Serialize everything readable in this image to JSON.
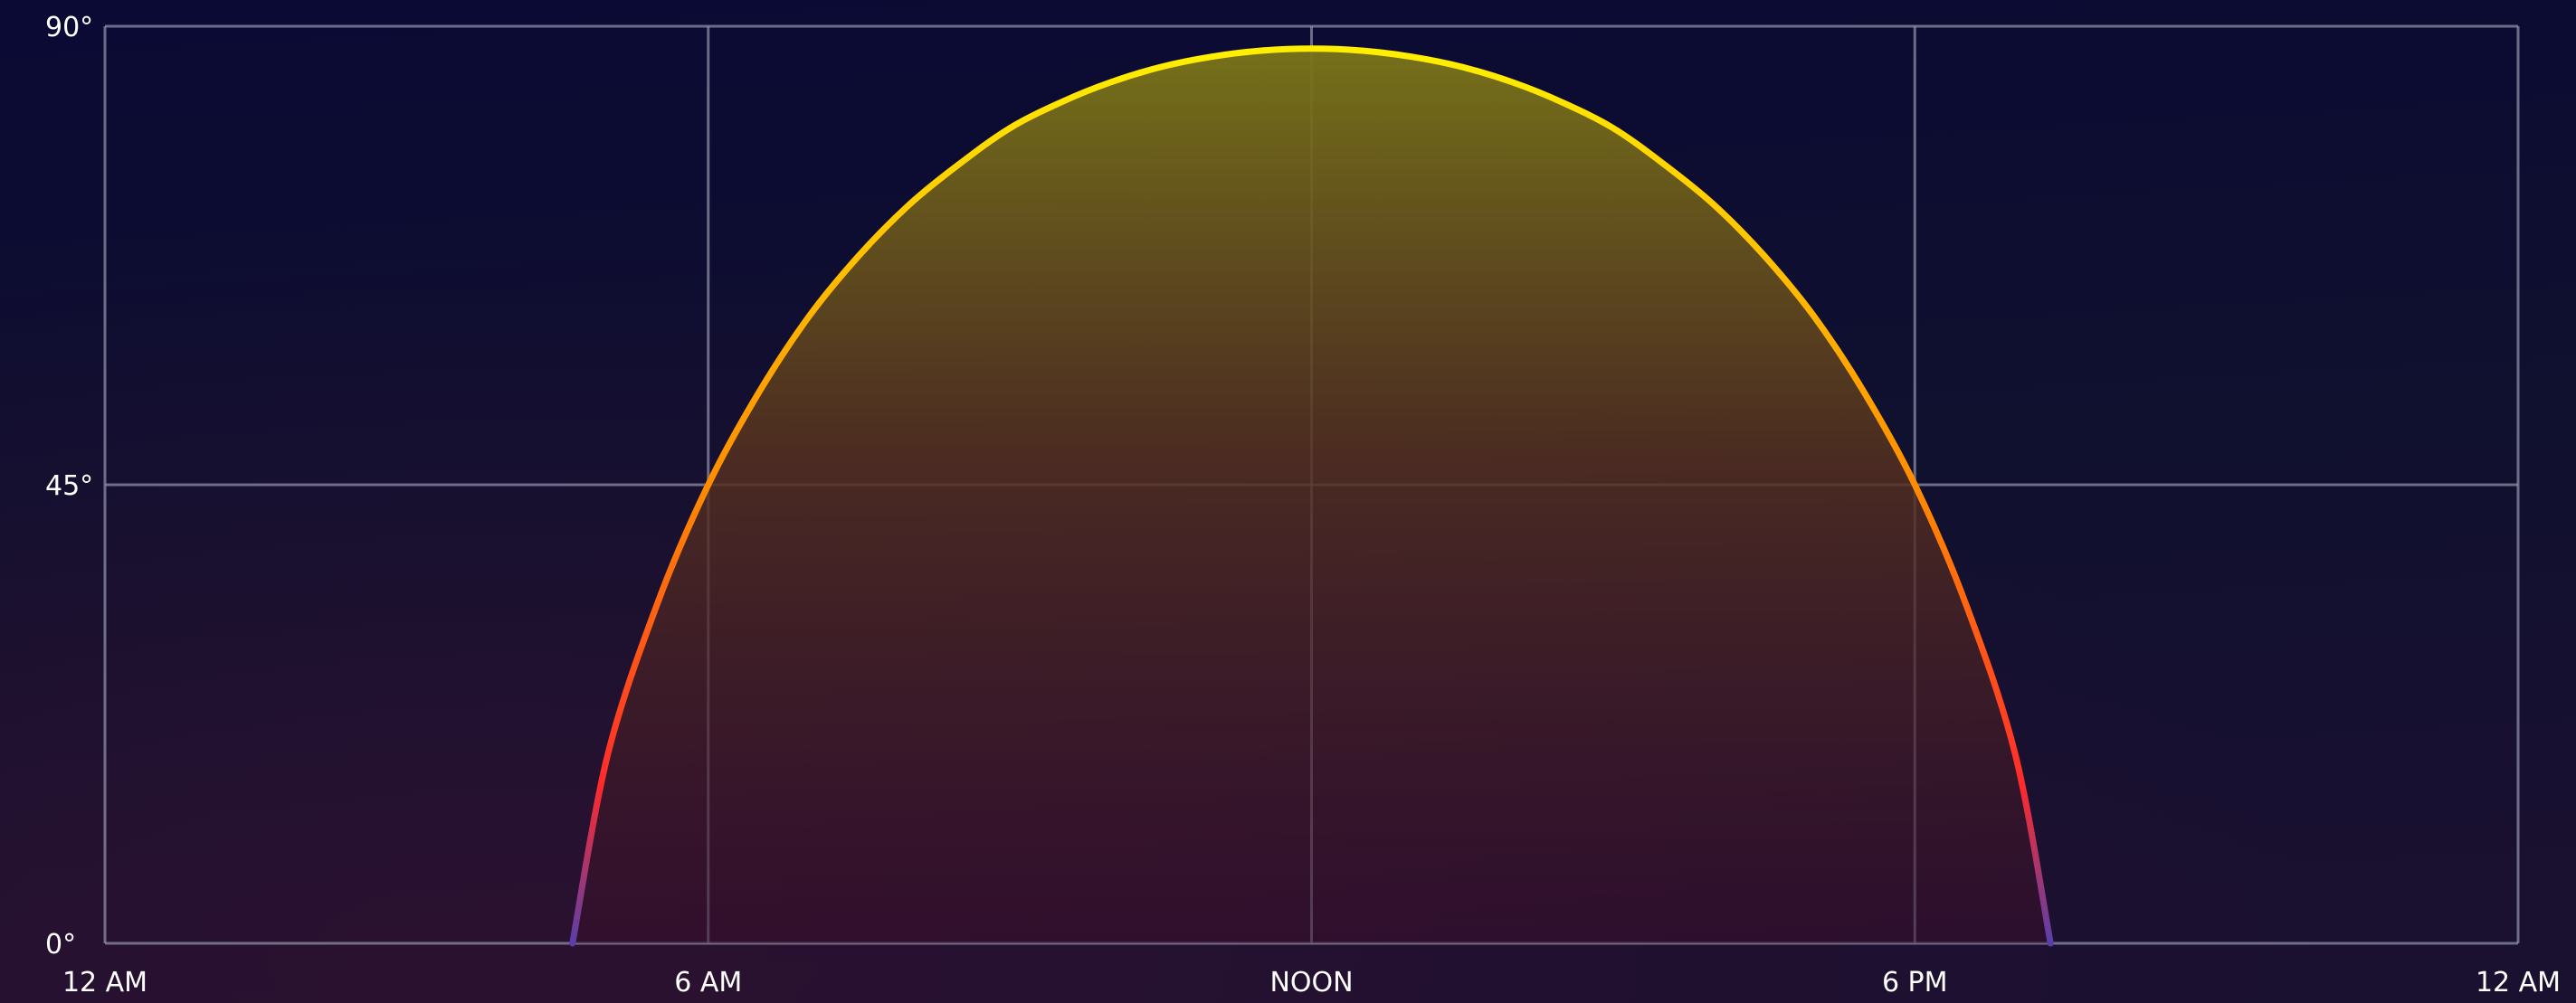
{
  "chart_data": {
    "type": "area",
    "title": "",
    "xlabel": "",
    "ylabel": "",
    "x_unit": "hours",
    "xlim": [
      0,
      24
    ],
    "ylim": [
      0,
      90
    ],
    "x_ticks": [
      {
        "value": 0,
        "label": "12 AM"
      },
      {
        "value": 6,
        "label": "6 AM"
      },
      {
        "value": 12,
        "label": "NOON"
      },
      {
        "value": 18,
        "label": "6 PM"
      },
      {
        "value": 24,
        "label": "12 AM"
      }
    ],
    "y_ticks": [
      {
        "value": 0,
        "label": "0°"
      },
      {
        "value": 45,
        "label": "45°"
      },
      {
        "value": 90,
        "label": "90°"
      }
    ],
    "grid": true,
    "legend": "none",
    "series": [
      {
        "x": [
          4.65,
          5.0,
          5.5,
          6.0,
          6.5,
          7.0,
          7.5,
          8.0,
          8.5,
          9.0,
          9.5,
          10.0,
          10.5,
          11.0,
          11.5,
          12.0,
          12.5,
          13.0,
          13.5,
          14.0,
          14.5,
          15.0,
          15.5,
          16.0,
          16.5,
          17.0,
          17.5,
          18.0,
          18.5,
          19.0,
          19.35
        ],
        "y": [
          0,
          18.5,
          33.5,
          45.0,
          54.0,
          61.5,
          67.5,
          72.5,
          76.5,
          80.0,
          82.5,
          84.5,
          86.0,
          87.0,
          87.6,
          87.8,
          87.6,
          87.0,
          86.0,
          84.5,
          82.5,
          80.0,
          76.5,
          72.5,
          67.5,
          61.5,
          54.0,
          45.0,
          33.5,
          18.5,
          0
        ]
      }
    ],
    "colors": {
      "background_top": "#0a0a34",
      "background_bottom": "#1a1030",
      "line_low": "#5a3fa8",
      "line_red": "#ff2b2b",
      "line_orange": "#ff8c00",
      "line_high": "#ffee00",
      "fill_top": "#7a7418",
      "fill_bottom": "#3a0d2a",
      "grid": "#8c8ca6",
      "text": "#ffffff"
    }
  }
}
